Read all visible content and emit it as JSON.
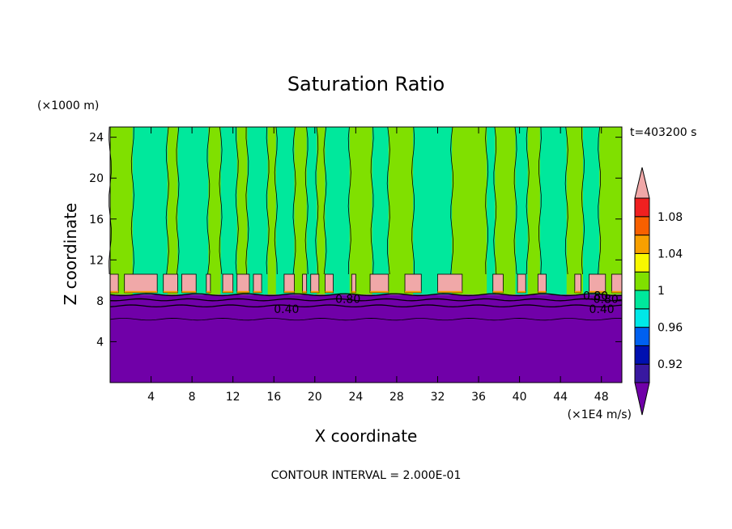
{
  "chart_data": {
    "type": "heatmap",
    "title": "Saturation Ratio",
    "xlabel": "X coordinate",
    "ylabel": "Z coordinate",
    "x_unit": "(×1E4 m/s)",
    "y_unit": "(×1000 m)",
    "time_label": "t=403200 s",
    "footer": "CONTOUR INTERVAL = 2.000E-01",
    "xlim": [
      0,
      50
    ],
    "ylim": [
      0,
      25
    ],
    "x_ticks": [
      "4",
      "8",
      "12",
      "16",
      "20",
      "24",
      "28",
      "32",
      "36",
      "40",
      "44",
      "48"
    ],
    "y_ticks": [
      "4",
      "8",
      "12",
      "16",
      "20",
      "24"
    ],
    "contour_labels": [
      "0.40",
      "0.80",
      "0.80",
      "0.40",
      "0.80"
    ],
    "colorbar": {
      "labels": [
        "1.08",
        "1.04",
        "1",
        "0.96",
        "0.92"
      ],
      "levels": [
        {
          "upper": 0.9,
          "color": "#7000a8"
        },
        {
          "upper": 0.92,
          "color": "#3818a0"
        },
        {
          "upper": 0.94,
          "color": "#0010b0"
        },
        {
          "upper": 0.96,
          "color": "#0060f0"
        },
        {
          "upper": 0.98,
          "color": "#00e8e8"
        },
        {
          "upper": 1.0,
          "color": "#00e89c"
        },
        {
          "upper": 1.02,
          "color": "#80e000"
        },
        {
          "upper": 1.04,
          "color": "#f8f800"
        },
        {
          "upper": 1.06,
          "color": "#f8a000"
        },
        {
          "upper": 1.08,
          "color": "#f86000"
        },
        {
          "upper": 1.1,
          "color": "#f02020"
        },
        {
          "upper": 1.12,
          "color": "#f0a8a8"
        }
      ]
    },
    "field": {
      "lower_layer_top_z": 8.6,
      "lower_layer_value": 0.4,
      "cap_layer_z": [
        8.8,
        10.6
      ],
      "cap_layer_value": 1.12,
      "upper_colors": [
        "#80e000",
        "#00e89c"
      ],
      "columns": [
        {
          "x": [
            0,
            2.2
          ],
          "c": 0
        },
        {
          "x": [
            2.2,
            5.6
          ],
          "c": 1
        },
        {
          "x": [
            5.6,
            6.6
          ],
          "c": 0
        },
        {
          "x": [
            6.6,
            9.6
          ],
          "c": 1
        },
        {
          "x": [
            9.6,
            10.8
          ],
          "c": 0
        },
        {
          "x": [
            10.8,
            12.4
          ],
          "c": 1
        },
        {
          "x": [
            12.4,
            13.4
          ],
          "c": 0
        },
        {
          "x": [
            13.4,
            15.4
          ],
          "c": 1
        },
        {
          "x": [
            15.4,
            16.2
          ],
          "c": 0
        },
        {
          "x": [
            16.2,
            18.0
          ],
          "c": 1
        },
        {
          "x": [
            18.0,
            19.2
          ],
          "c": 0
        },
        {
          "x": [
            19.2,
            20.2
          ],
          "c": 1
        },
        {
          "x": [
            20.2,
            21.0
          ],
          "c": 0
        },
        {
          "x": [
            21.0,
            23.4
          ],
          "c": 1
        },
        {
          "x": [
            23.4,
            25.6
          ],
          "c": 0
        },
        {
          "x": [
            25.6,
            27.2
          ],
          "c": 1
        },
        {
          "x": [
            27.2,
            29.6
          ],
          "c": 0
        },
        {
          "x": [
            29.6,
            33.4
          ],
          "c": 1
        },
        {
          "x": [
            33.4,
            36.8
          ],
          "c": 0
        },
        {
          "x": [
            36.8,
            37.6
          ],
          "c": 1
        },
        {
          "x": [
            37.6,
            39.6
          ],
          "c": 0
        },
        {
          "x": [
            39.6,
            40.8
          ],
          "c": 1
        },
        {
          "x": [
            40.8,
            42.0
          ],
          "c": 0
        },
        {
          "x": [
            42.0,
            44.6
          ],
          "c": 1
        },
        {
          "x": [
            44.6,
            46.2
          ],
          "c": 0
        },
        {
          "x": [
            46.2,
            47.8
          ],
          "c": 1
        },
        {
          "x": [
            47.8,
            50.0
          ],
          "c": 0
        }
      ],
      "caps": [
        [
          0,
          0.8
        ],
        [
          1.4,
          4.6
        ],
        [
          5.2,
          6.6
        ],
        [
          7.0,
          8.4
        ],
        [
          9.4,
          9.8
        ],
        [
          11.0,
          12.0
        ],
        [
          12.4,
          13.6
        ],
        [
          14.0,
          14.8
        ],
        [
          17.0,
          18.0
        ],
        [
          18.8,
          19.2
        ],
        [
          19.6,
          20.4
        ],
        [
          21.0,
          21.8
        ],
        [
          23.6,
          24.0
        ],
        [
          25.4,
          27.2
        ],
        [
          28.8,
          30.4
        ],
        [
          32.0,
          34.4
        ],
        [
          37.4,
          38.4
        ],
        [
          39.8,
          40.6
        ],
        [
          41.8,
          42.6
        ],
        [
          45.4,
          46.0
        ],
        [
          46.8,
          48.4
        ],
        [
          49.0,
          50.0
        ]
      ]
    }
  }
}
